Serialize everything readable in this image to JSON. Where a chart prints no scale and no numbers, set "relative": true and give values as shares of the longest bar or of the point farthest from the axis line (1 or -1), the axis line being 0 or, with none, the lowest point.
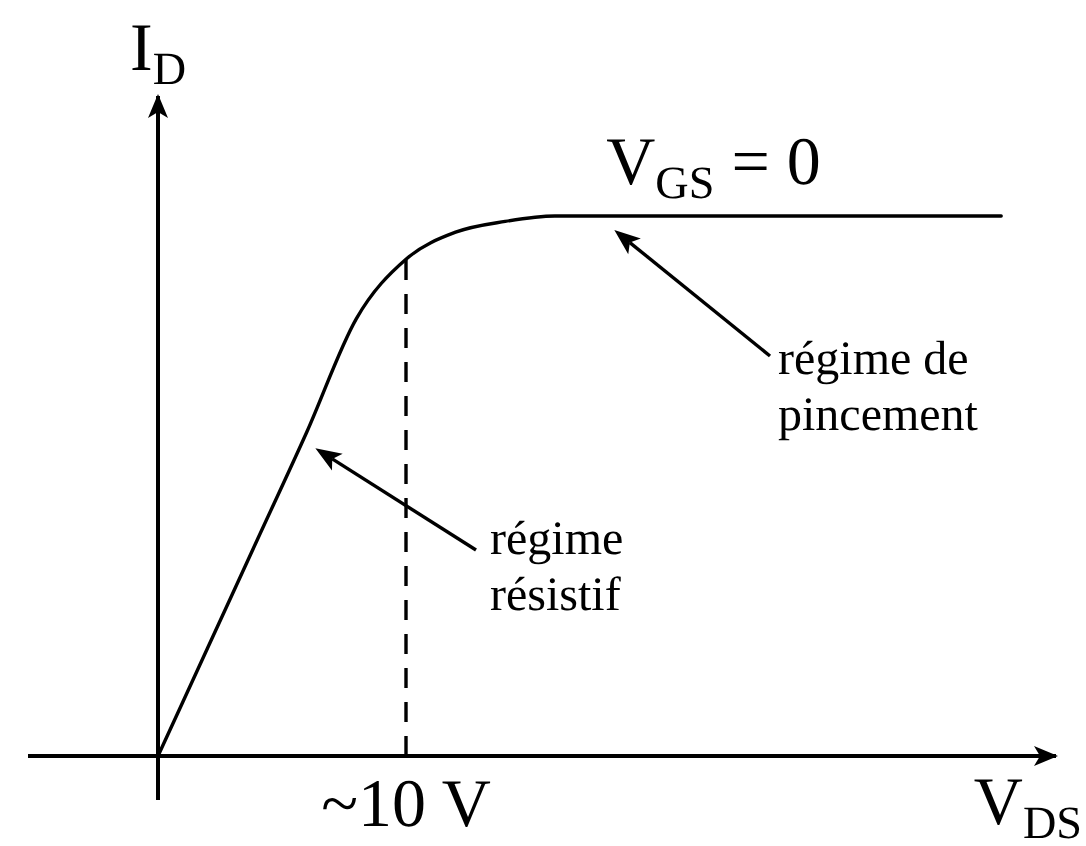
{
  "chart_data": {
    "type": "line",
    "relative": true,
    "xlabel": "V$_{DS}$",
    "ylabel": "I$_{D}$",
    "categories": [
      null,
      null,
      null,
      null,
      null,
      null,
      null,
      null,
      null,
      null,
      null,
      null,
      null,
      null,
      null,
      null,
      null,
      null
    ],
    "series": [
      {
        "name": "V$_{GS}$ = 0",
        "color": "#000000",
        "values": [
          0,
          0.2,
          0.4,
          0.6,
          0.81,
          0.92,
          0.97,
          0.99,
          1,
          1,
          1,
          1,
          1,
          1,
          1,
          1,
          1,
          1
        ]
      }
    ],
    "annotations": [
      "régime de pincement",
      "régime résistif",
      "~10 V"
    ]
  }
}
